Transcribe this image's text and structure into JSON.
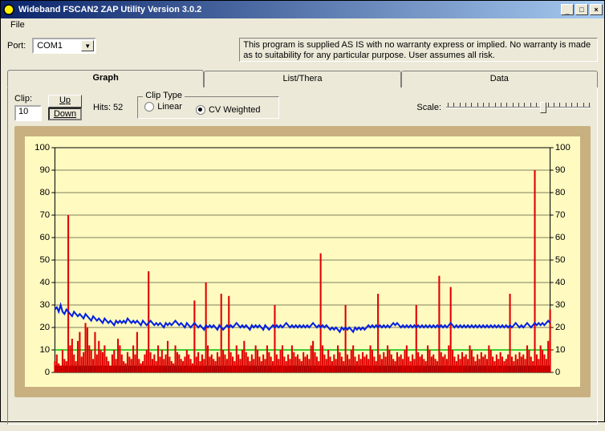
{
  "window": {
    "title": "Wideband FSCAN2 ZAP Utility Version 3.0.2",
    "icon_bg": "#fff200",
    "icon_ring": "#000000"
  },
  "titlebar_buttons": {
    "min": "_",
    "max": "□",
    "close": "×"
  },
  "menu": {
    "file": "File"
  },
  "port": {
    "label": "Port:",
    "value": "COM1"
  },
  "disclaimer": "This program is supplied AS IS with no warranty express or implied. No warranty is made as to suitability for any particular purpose. User assumes all risk.",
  "tabs": {
    "graph": "Graph",
    "list": "List/Thera",
    "data": "Data",
    "active": "graph"
  },
  "clip": {
    "label": "Clip:",
    "value": "10",
    "up": "Up",
    "down": "Down",
    "hits_label": "Hits: 52"
  },
  "cliptype": {
    "legend": "Clip Type",
    "linear": "Linear",
    "cv": "CV Weighted",
    "selected": "cv"
  },
  "scale": {
    "label": "Scale:",
    "ticks": 25,
    "value": 0.68
  },
  "chart": {
    "type": "line+bar",
    "background": "#fffac0",
    "frame_color": "#c9b080",
    "grid_color": "#000000",
    "green_line_color": "#00c000",
    "blue_line_color": "#0020e0",
    "red_color": "#e00000",
    "black_band_color": "#000000",
    "ylim": [
      0,
      100
    ],
    "yticks": [
      0,
      10,
      20,
      30,
      40,
      50,
      60,
      70,
      80,
      90,
      100
    ],
    "n_points": 260,
    "green_y": 10,
    "black_band_ymax": 3,
    "blue_y": [
      28,
      29,
      27,
      30,
      27,
      26,
      28,
      27,
      26,
      25,
      27,
      26,
      25,
      26,
      25,
      24,
      26,
      25,
      24,
      23,
      25,
      24,
      23,
      24,
      23,
      22,
      24,
      23,
      22,
      23,
      22,
      21,
      23,
      22,
      23,
      22,
      23,
      22,
      24,
      23,
      22,
      23,
      22,
      23,
      22,
      21,
      23,
      22,
      21,
      22,
      23,
      22,
      21,
      22,
      21,
      22,
      21,
      20,
      22,
      21,
      22,
      21,
      22,
      23,
      22,
      21,
      22,
      21,
      20,
      22,
      21,
      20,
      21,
      22,
      21,
      20,
      21,
      20,
      19,
      21,
      20,
      21,
      20,
      21,
      20,
      19,
      21,
      20,
      19,
      20,
      21,
      20,
      21,
      20,
      21,
      22,
      21,
      20,
      21,
      20,
      21,
      20,
      19,
      21,
      20,
      21,
      20,
      21,
      20,
      19,
      21,
      20,
      19,
      20,
      21,
      20,
      21,
      20,
      21,
      20,
      21,
      22,
      21,
      20,
      21,
      20,
      21,
      20,
      21,
      20,
      21,
      20,
      21,
      20,
      21,
      22,
      21,
      20,
      21,
      20,
      21,
      20,
      21,
      20,
      19,
      20,
      19,
      20,
      19,
      18,
      20,
      19,
      20,
      19,
      20,
      19,
      18,
      20,
      19,
      20,
      19,
      20,
      19,
      20,
      21,
      20,
      21,
      20,
      21,
      20,
      21,
      20,
      21,
      20,
      21,
      20,
      21,
      22,
      21,
      22,
      21,
      20,
      21,
      20,
      21,
      20,
      21,
      20,
      21,
      20,
      21,
      20,
      21,
      20,
      21,
      20,
      21,
      20,
      21,
      20,
      21,
      20,
      21,
      20,
      21,
      20,
      21,
      22,
      21,
      20,
      21,
      20,
      21,
      20,
      21,
      20,
      21,
      20,
      21,
      20,
      21,
      20,
      21,
      20,
      21,
      20,
      21,
      20,
      21,
      20,
      21,
      20,
      21,
      20,
      21,
      20,
      21,
      20,
      21,
      20,
      21,
      22,
      21,
      20,
      21,
      20,
      21,
      22,
      21,
      20,
      21,
      22,
      21,
      22,
      21,
      22,
      21,
      22,
      23,
      22
    ],
    "red_y": [
      5,
      8,
      4,
      3,
      10,
      6,
      5,
      70,
      12,
      15,
      8,
      5,
      14,
      18,
      7,
      9,
      22,
      20,
      12,
      10,
      6,
      18,
      8,
      14,
      10,
      9,
      12,
      7,
      5,
      3,
      8,
      10,
      6,
      15,
      12,
      8,
      5,
      4,
      9,
      7,
      6,
      12,
      8,
      18,
      6,
      4,
      5,
      8,
      10,
      45,
      9,
      6,
      8,
      5,
      12,
      7,
      10,
      6,
      8,
      14,
      7,
      5,
      4,
      12,
      9,
      8,
      6,
      5,
      7,
      10,
      8,
      6,
      4,
      32,
      7,
      9,
      5,
      8,
      6,
      40,
      12,
      7,
      8,
      6,
      5,
      9,
      7,
      35,
      10,
      8,
      6,
      34,
      9,
      7,
      5,
      12,
      8,
      6,
      10,
      14,
      9,
      7,
      5,
      8,
      6,
      12,
      10,
      7,
      5,
      8,
      6,
      12,
      9,
      7,
      5,
      30,
      8,
      6,
      10,
      12,
      7,
      5,
      8,
      6,
      12,
      9,
      7,
      8,
      6,
      5,
      9,
      7,
      8,
      6,
      12,
      14,
      9,
      7,
      5,
      53,
      12,
      8,
      6,
      10,
      7,
      5,
      8,
      6,
      12,
      9,
      7,
      5,
      30,
      8,
      6,
      10,
      12,
      7,
      5,
      8,
      6,
      9,
      7,
      8,
      6,
      12,
      10,
      7,
      5,
      35,
      8,
      6,
      9,
      7,
      12,
      10,
      8,
      6,
      5,
      9,
      7,
      8,
      6,
      10,
      12,
      7,
      5,
      8,
      6,
      30,
      9,
      7,
      8,
      6,
      5,
      12,
      10,
      7,
      8,
      6,
      5,
      43,
      9,
      7,
      8,
      6,
      12,
      38,
      10,
      7,
      5,
      8,
      6,
      9,
      7,
      8,
      6,
      12,
      10,
      7,
      5,
      8,
      6,
      9,
      7,
      8,
      6,
      12,
      10,
      7,
      5,
      8,
      6,
      9,
      7,
      5,
      6,
      8,
      35,
      7,
      5,
      8,
      6,
      9,
      7,
      8,
      6,
      12,
      10,
      7,
      5,
      90,
      8,
      6,
      12,
      10,
      8,
      6,
      14,
      28
    ]
  }
}
